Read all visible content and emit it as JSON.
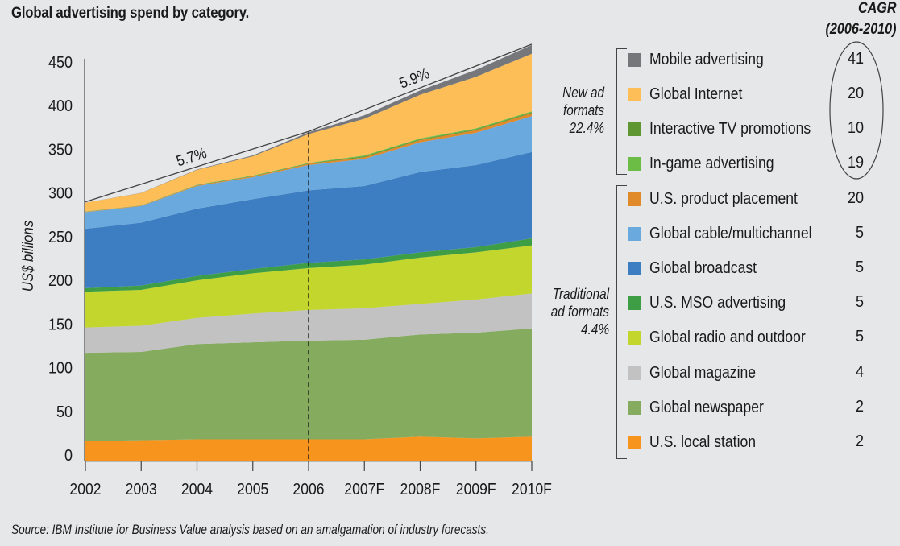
{
  "title": "Global advertising spend by category.",
  "cagr_header": [
    "CAGR",
    "(2006-2010)"
  ],
  "source": "Source: IBM Institute for Business Value analysis based on an amalgamation of industry forecasts.",
  "groups": {
    "new": {
      "lines": [
        "New ad",
        "formats",
        "22.4%"
      ]
    },
    "traditional": {
      "lines": [
        "Traditional",
        "ad formats",
        "4.4%"
      ]
    }
  },
  "legend": [
    {
      "key": "mobile",
      "label": "Mobile advertising",
      "cagr": "41",
      "color": "#76777a",
      "group": "new"
    },
    {
      "key": "internet",
      "label": "Global Internet",
      "cagr": "20",
      "color": "#fdbe57",
      "group": "new"
    },
    {
      "key": "itv",
      "label": "Interactive TV promotions",
      "cagr": "10",
      "color": "#5e9732",
      "group": "new"
    },
    {
      "key": "ingame",
      "label": "In-game advertising",
      "cagr": "19",
      "color": "#6cbd45",
      "group": "new"
    },
    {
      "key": "product",
      "label": "U.S. product placement",
      "cagr": "20",
      "color": "#e08a2a",
      "group": "traditional"
    },
    {
      "key": "cable",
      "label": "Global cable/multichannel",
      "cagr": "5",
      "color": "#6aa9de",
      "group": "traditional"
    },
    {
      "key": "broadcast",
      "label": "Global broadcast",
      "cagr": "5",
      "color": "#3d7ec2",
      "group": "traditional"
    },
    {
      "key": "mso",
      "label": "U.S. MSO advertising",
      "cagr": "5",
      "color": "#3e9e46",
      "group": "traditional"
    },
    {
      "key": "radio",
      "label": "Global radio and outdoor",
      "cagr": "5",
      "color": "#c2d62d",
      "group": "traditional"
    },
    {
      "key": "magazine",
      "label": "Global magazine",
      "cagr": "4",
      "color": "#c2c2c2",
      "group": "traditional"
    },
    {
      "key": "newspaper",
      "label": "Global newspaper",
      "cagr": "2",
      "color": "#85ab5e",
      "group": "traditional"
    },
    {
      "key": "local",
      "label": "U.S. local station",
      "cagr": "2",
      "color": "#f7941e",
      "group": "traditional"
    }
  ],
  "chart_data": {
    "type": "area",
    "stacked": true,
    "title": "Global advertising spend by category.",
    "xlabel": "",
    "ylabel": "US$ billions",
    "ylim": [
      0,
      450
    ],
    "yticks": [
      0,
      50,
      100,
      150,
      200,
      250,
      300,
      350,
      400,
      450
    ],
    "categories": [
      "2002",
      "2003",
      "2004",
      "2005",
      "2006",
      "2007F",
      "2008F",
      "2009F",
      "2010F"
    ],
    "divider_at": "2006",
    "annotations": [
      {
        "text": "5.7%",
        "from": "2002",
        "to": "2006"
      },
      {
        "text": "5.9%",
        "from": "2006",
        "to": "2010F"
      }
    ],
    "series": [
      {
        "name": "U.S. local station",
        "values": [
          16,
          17,
          18,
          18,
          18,
          18,
          21,
          19,
          21
        ]
      },
      {
        "name": "Global newspaper",
        "values": [
          101,
          101,
          109,
          111,
          113,
          114,
          117,
          121,
          124
        ]
      },
      {
        "name": "Global magazine",
        "values": [
          29,
          30,
          30,
          33,
          35,
          36,
          35,
          38,
          40
        ]
      },
      {
        "name": "Global radio and outdoor",
        "values": [
          41,
          41,
          43,
          46,
          48,
          50,
          53,
          54,
          55
        ]
      },
      {
        "name": "U.S. MSO advertising",
        "values": [
          4,
          5,
          5,
          5,
          6,
          6,
          6,
          6,
          8
        ]
      },
      {
        "name": "Global broadcast",
        "values": [
          68,
          72,
          77,
          80,
          83,
          84,
          92,
          94,
          99
        ]
      },
      {
        "name": "Global cable/multichannel",
        "values": [
          19,
          19,
          26,
          25,
          29,
          31,
          34,
          37,
          41
        ]
      },
      {
        "name": "U.S. product placement",
        "values": [
          0.5,
          0.5,
          0.8,
          1,
          1.5,
          2,
          2.5,
          3,
          3.5
        ]
      },
      {
        "name": "Interactive TV promotions",
        "values": [
          0.2,
          0.2,
          0.4,
          0.5,
          0.5,
          1,
          1,
          1,
          1
        ]
      },
      {
        "name": "In-game advertising",
        "values": [
          0.2,
          0.2,
          0.3,
          0.5,
          0.5,
          1,
          1,
          1,
          1
        ]
      },
      {
        "name": "Global Internet",
        "values": [
          10,
          14,
          17,
          22,
          33,
          42,
          50,
          59,
          66
        ]
      },
      {
        "name": "Mobile advertising",
        "values": [
          0.1,
          0.2,
          0.5,
          1,
          2,
          4,
          5,
          8,
          10
        ]
      }
    ]
  }
}
